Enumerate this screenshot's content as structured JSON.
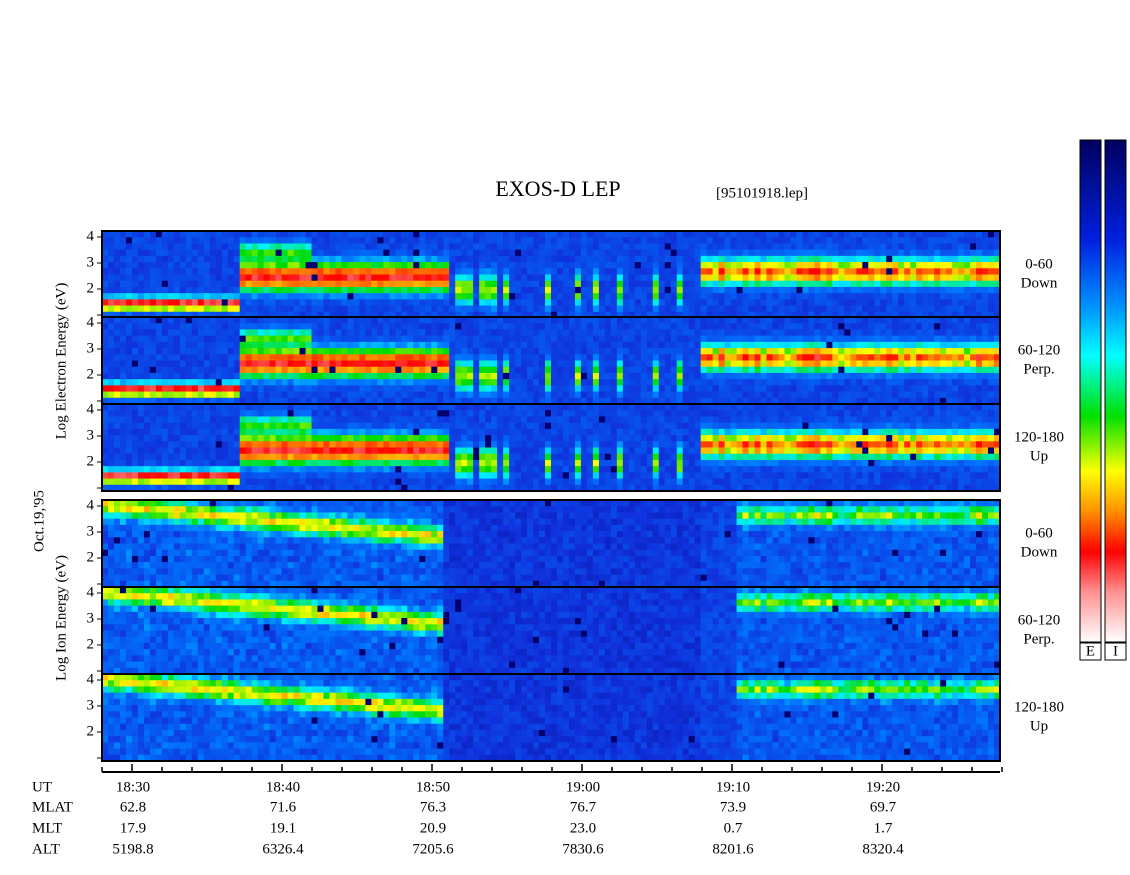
{
  "header": {
    "title": "EXOS-D LEP",
    "file": "[95101918.lep]"
  },
  "side_labels": {
    "electron": "Log Electron Energy (eV)",
    "ion": "Log Ion Energy (eV)",
    "date": "Oct.19,'95"
  },
  "energy_ticks": [
    2,
    3,
    4
  ],
  "panels": [
    {
      "species": "electron",
      "angle": "0-60",
      "direction": "Down"
    },
    {
      "species": "electron",
      "angle": "60-120",
      "direction": "Perp."
    },
    {
      "species": "electron",
      "angle": "120-180",
      "direction": "Up"
    },
    {
      "species": "ion",
      "angle": "0-60",
      "direction": "Down"
    },
    {
      "species": "ion",
      "angle": "60-120",
      "direction": "Perp."
    },
    {
      "species": "ion",
      "angle": "120-180",
      "direction": "Up"
    }
  ],
  "time_axis": {
    "rows": [
      {
        "name": "UT",
        "values": [
          "18:30",
          "18:40",
          "18:50",
          "19:00",
          "19:10",
          "19:20"
        ]
      },
      {
        "name": "MLAT",
        "values": [
          "62.8",
          "71.6",
          "76.3",
          "76.7",
          "73.9",
          "69.7"
        ]
      },
      {
        "name": "MLT",
        "values": [
          "17.9",
          "19.1",
          "20.9",
          "23.0",
          "0.7",
          "1.7"
        ]
      },
      {
        "name": "ALT",
        "values": [
          "5198.8",
          "6326.4",
          "7205.6",
          "7830.6",
          "8201.6",
          "8320.4"
        ]
      }
    ]
  },
  "colorbar": {
    "labels": [
      "E",
      "I"
    ]
  }
}
